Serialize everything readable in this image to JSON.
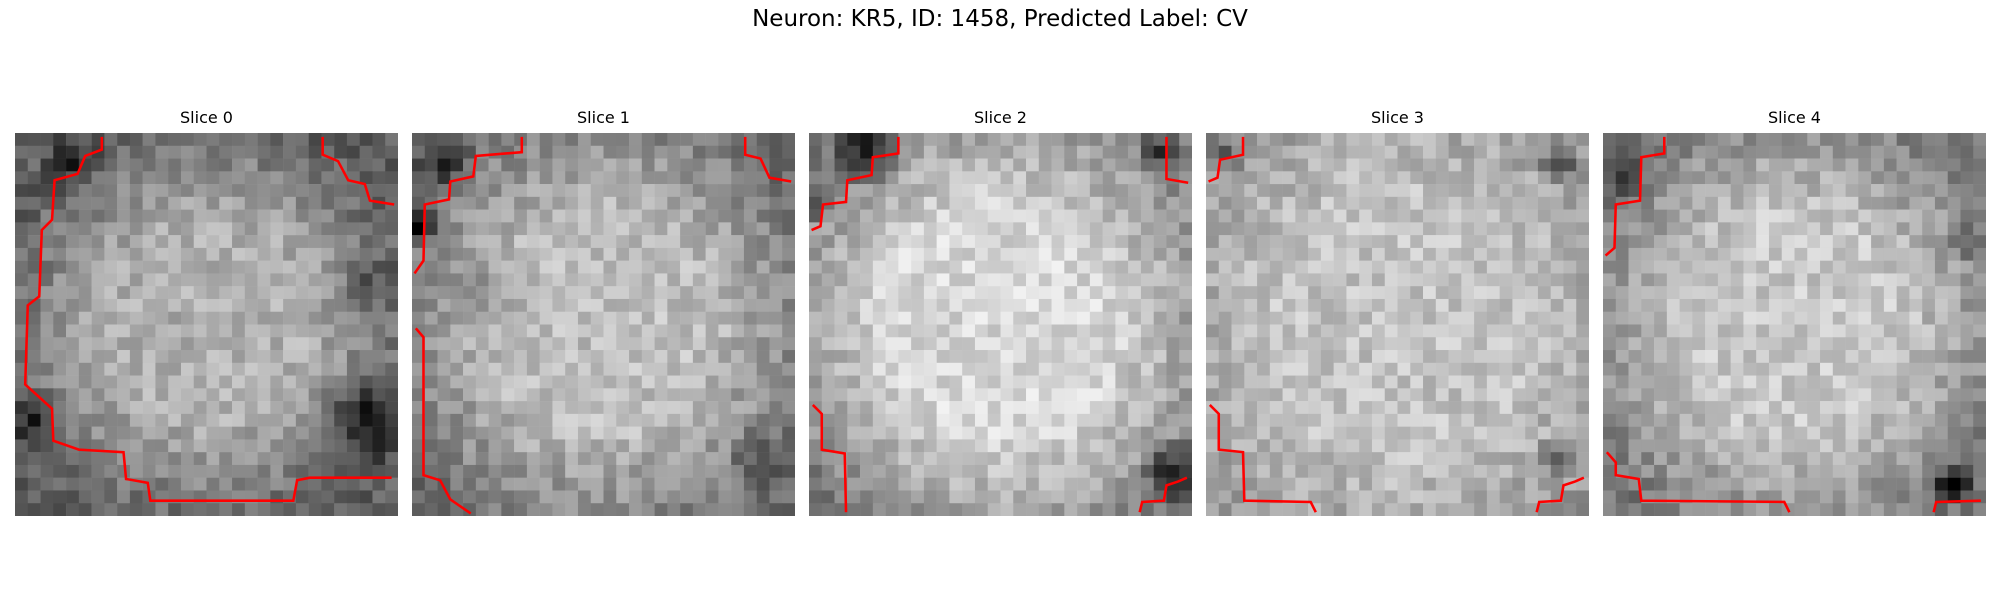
{
  "figure": {
    "title": "Neuron: KR5, ID: 1458, Predicted Label: CV",
    "contour_color": "#ff0000",
    "colormap": "gray",
    "slices": [
      {
        "title": "Slice 0"
      },
      {
        "title": "Slice 1"
      },
      {
        "title": "Slice 2"
      },
      {
        "title": "Slice 3"
      },
      {
        "title": "Slice 4"
      }
    ]
  }
}
